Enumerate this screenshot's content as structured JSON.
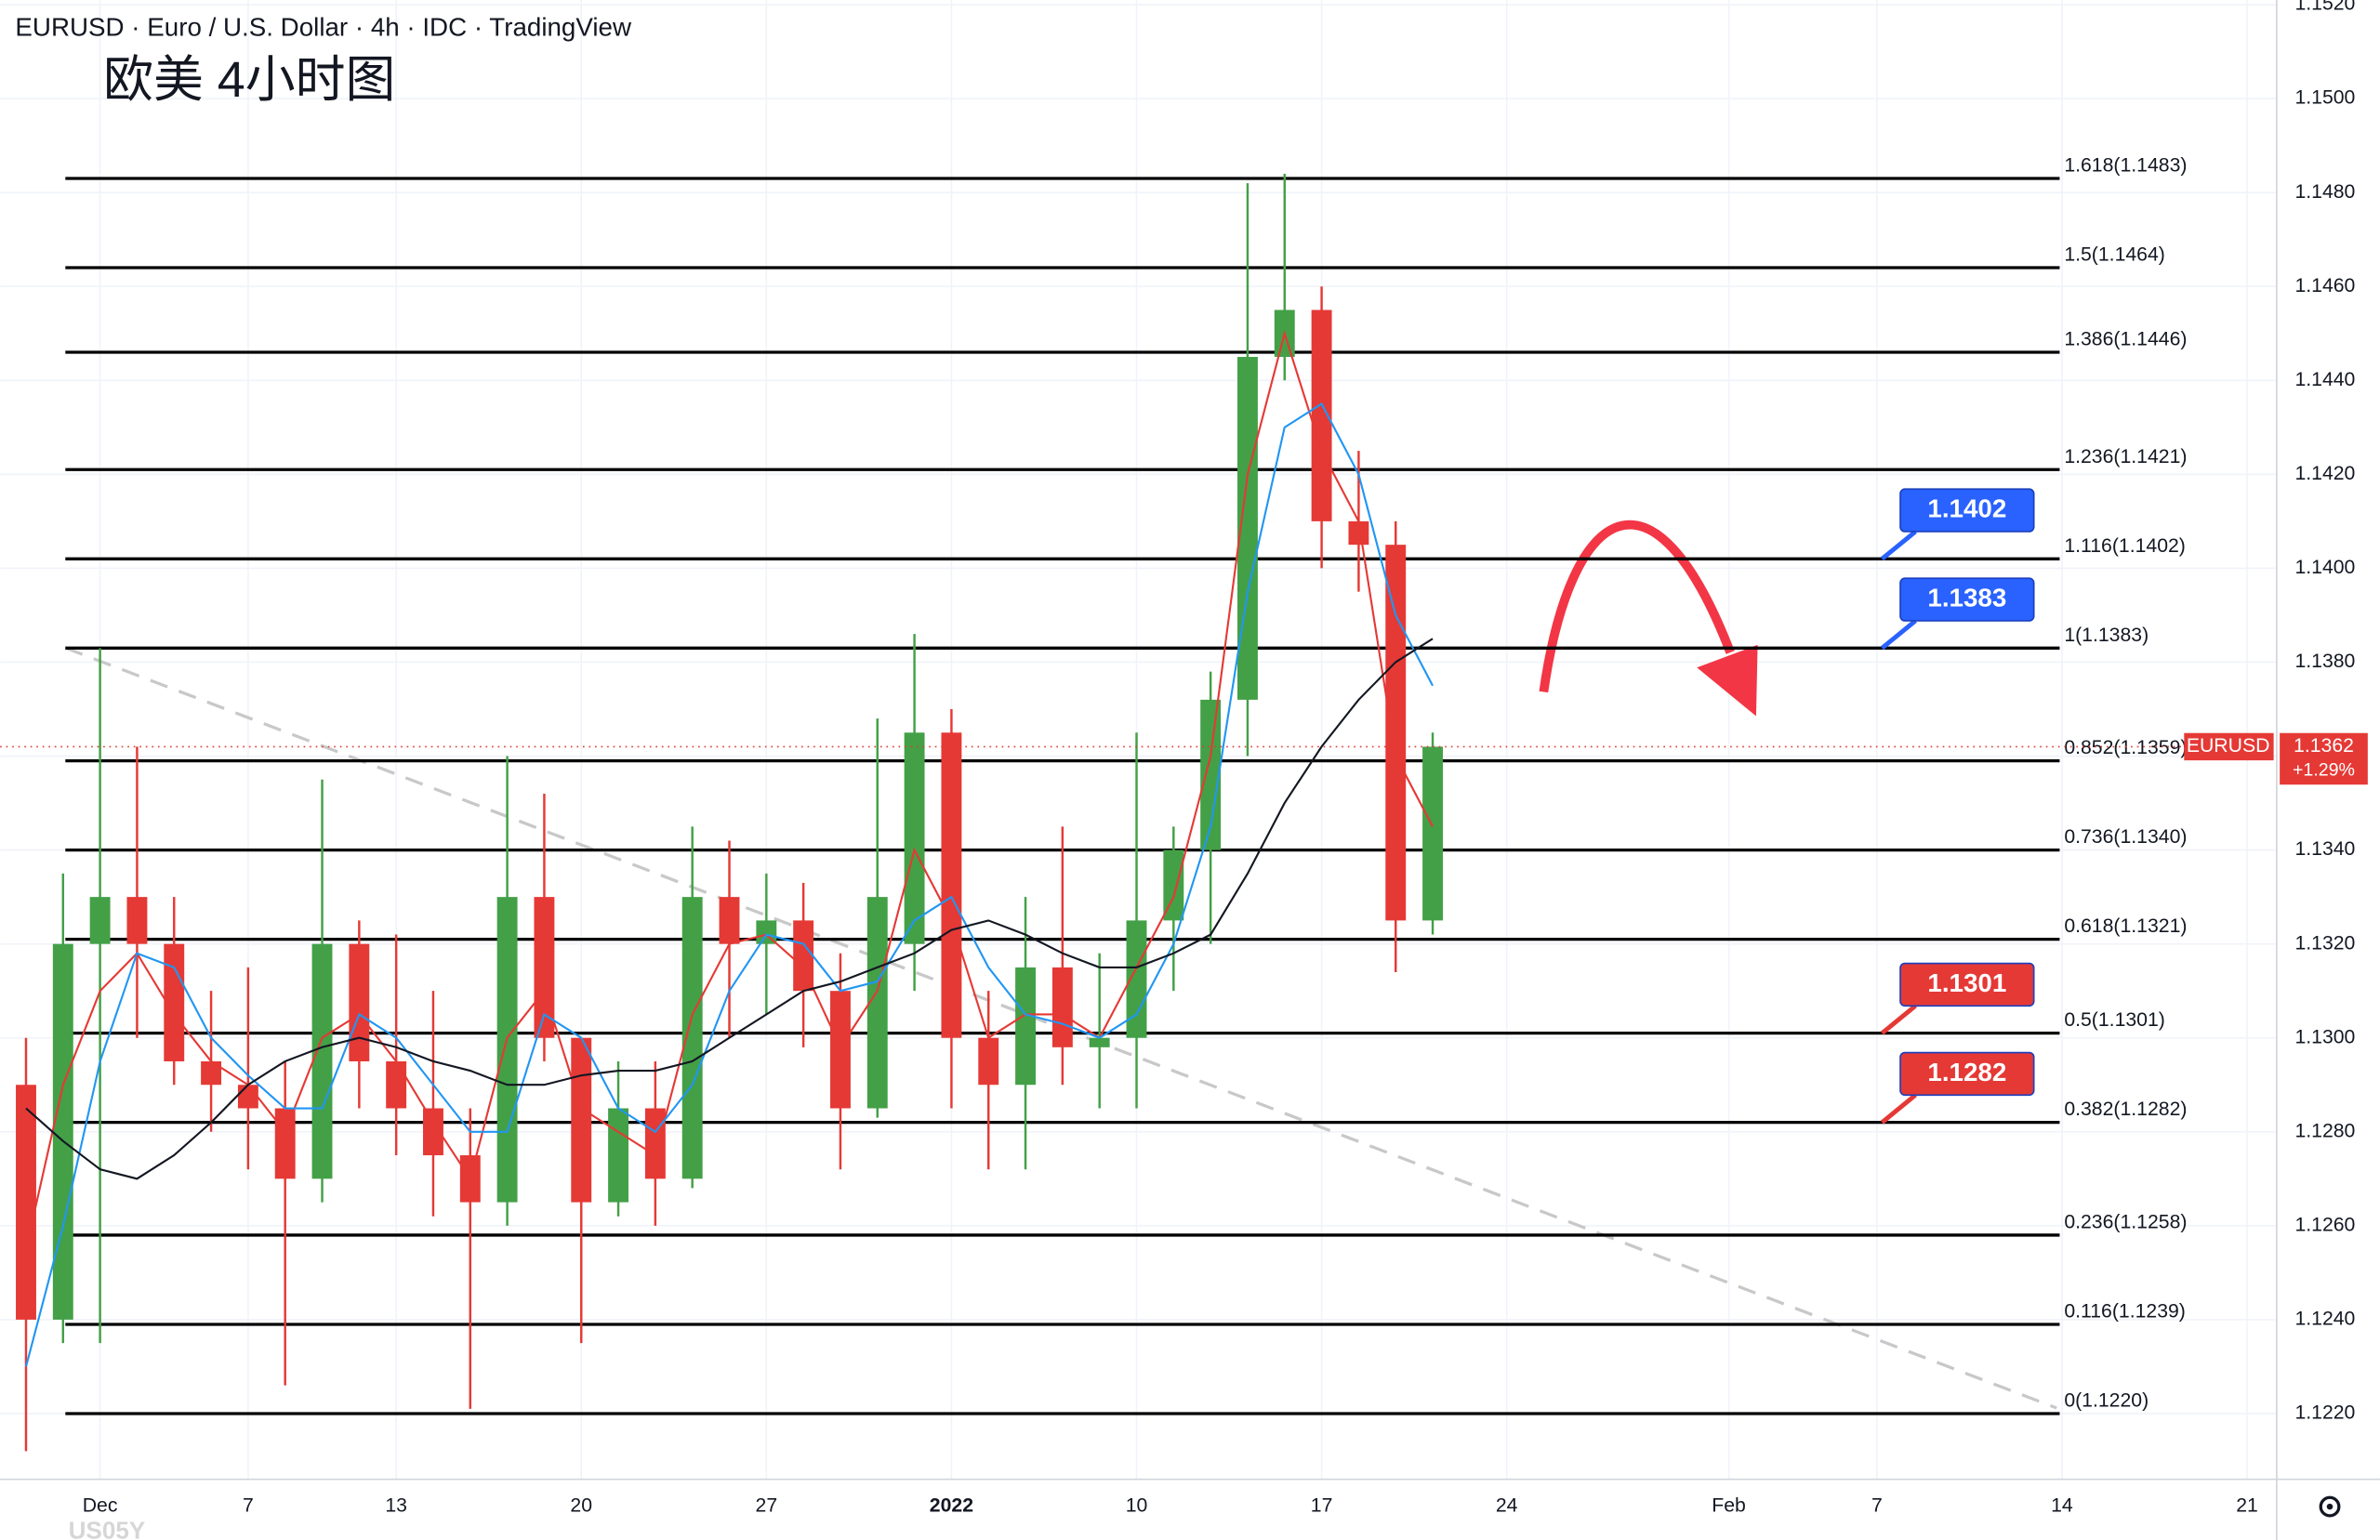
{
  "chart_data": {
    "type": "candlestick",
    "title": "EURUSD · Euro / U.S. Dollar · 4h · IDC · TradingView",
    "subtitle": "欧美 4小时图",
    "watermark": "US05Y",
    "xlim": [
      -2.7,
      58.8
    ],
    "xticks": [
      {
        "value": 0,
        "label": "Dec"
      },
      {
        "value": 4,
        "label": "7"
      },
      {
        "value": 8,
        "label": "13"
      },
      {
        "value": 13,
        "label": "20"
      },
      {
        "value": 18,
        "label": "27"
      },
      {
        "value": 23,
        "label": "2022"
      },
      {
        "value": 28,
        "label": "10"
      },
      {
        "value": 33,
        "label": "17"
      },
      {
        "value": 38,
        "label": "24"
      },
      {
        "value": 44,
        "label": "Feb"
      },
      {
        "value": 48,
        "label": "7"
      },
      {
        "value": 53,
        "label": "14"
      },
      {
        "value": 58,
        "label": "21"
      }
    ],
    "ylim": [
      1.1206,
      1.1521
    ],
    "yticks": [
      {
        "value": 1.122,
        "label": "1.1220"
      },
      {
        "value": 1.124,
        "label": "1.1240"
      },
      {
        "value": 1.126,
        "label": "1.1260"
      },
      {
        "value": 1.128,
        "label": "1.1280"
      },
      {
        "value": 1.13,
        "label": "1.1300"
      },
      {
        "value": 1.132,
        "label": "1.1320"
      },
      {
        "value": 1.134,
        "label": "1.1340"
      },
      {
        "value": 1.136,
        "label": "1.1360"
      },
      {
        "value": 1.138,
        "label": "1.1380"
      },
      {
        "value": 1.14,
        "label": "1.1400"
      },
      {
        "value": 1.142,
        "label": "1.1420"
      },
      {
        "value": 1.144,
        "label": "1.1440"
      },
      {
        "value": 1.146,
        "label": "1.1460"
      },
      {
        "value": 1.148,
        "label": "1.1480"
      },
      {
        "value": 1.15,
        "label": "1.1500"
      },
      {
        "value": 1.152,
        "label": "1.1520"
      }
    ],
    "grid": true,
    "up_color": "#43a047",
    "down_color": "#e53935",
    "x": [
      -2,
      -1,
      0,
      1,
      2,
      3,
      4,
      5,
      6,
      7,
      8,
      9,
      10,
      11,
      12,
      13,
      14,
      15,
      16,
      17,
      18,
      19,
      20,
      21,
      22,
      23,
      24,
      25,
      26,
      27,
      28,
      29,
      30,
      31,
      32,
      33,
      34,
      35,
      36
    ],
    "open": [
      1.129,
      1.124,
      1.132,
      1.133,
      1.132,
      1.1295,
      1.129,
      1.1285,
      1.127,
      1.132,
      1.1295,
      1.1285,
      1.1275,
      1.1265,
      1.133,
      1.13,
      1.1265,
      1.1285,
      1.127,
      1.133,
      1.132,
      1.1325,
      1.131,
      1.1285,
      1.132,
      1.1365,
      1.13,
      1.129,
      1.1315,
      1.1298,
      1.13,
      1.1325,
      1.134,
      1.1372,
      1.1445,
      1.1455,
      1.141,
      1.1405,
      1.1325
    ],
    "high": [
      1.13,
      1.1335,
      1.1383,
      1.1362,
      1.133,
      1.131,
      1.1315,
      1.1295,
      1.1355,
      1.1325,
      1.1322,
      1.131,
      1.1285,
      1.136,
      1.1352,
      1.13,
      1.1295,
      1.1295,
      1.1345,
      1.1342,
      1.1335,
      1.1333,
      1.1318,
      1.1368,
      1.1386,
      1.137,
      1.131,
      1.133,
      1.1345,
      1.1318,
      1.1365,
      1.1345,
      1.1378,
      1.1482,
      1.1484,
      1.146,
      1.1425,
      1.141,
      1.1365
    ],
    "low": [
      1.1212,
      1.1235,
      1.1235,
      1.13,
      1.129,
      1.128,
      1.1272,
      1.1226,
      1.1265,
      1.1285,
      1.1275,
      1.1262,
      1.1221,
      1.126,
      1.1295,
      1.1235,
      1.1262,
      1.126,
      1.1268,
      1.13,
      1.1305,
      1.1298,
      1.1272,
      1.1283,
      1.131,
      1.1285,
      1.1272,
      1.1272,
      1.129,
      1.1285,
      1.1285,
      1.131,
      1.132,
      1.136,
      1.144,
      1.14,
      1.1395,
      1.1314,
      1.1322
    ],
    "close": [
      1.124,
      1.132,
      1.133,
      1.132,
      1.1295,
      1.129,
      1.1285,
      1.127,
      1.132,
      1.1295,
      1.1285,
      1.1275,
      1.1265,
      1.133,
      1.13,
      1.1265,
      1.1285,
      1.127,
      1.133,
      1.132,
      1.1325,
      1.131,
      1.1285,
      1.133,
      1.1365,
      1.13,
      1.129,
      1.1315,
      1.1298,
      1.13,
      1.1325,
      1.134,
      1.1372,
      1.1445,
      1.1455,
      1.141,
      1.1405,
      1.1325,
      1.1362
    ],
    "lines": [
      {
        "color": "#e53935",
        "values": [
          1.1255,
          1.129,
          1.131,
          1.1318,
          1.1305,
          1.1295,
          1.129,
          1.128,
          1.13,
          1.1305,
          1.1295,
          1.1282,
          1.127,
          1.13,
          1.131,
          1.1285,
          1.128,
          1.1275,
          1.1305,
          1.132,
          1.1322,
          1.1315,
          1.1298,
          1.131,
          1.134,
          1.1325,
          1.13,
          1.1305,
          1.1305,
          1.13,
          1.1315,
          1.133,
          1.136,
          1.142,
          1.145,
          1.1425,
          1.141,
          1.136,
          1.1345
        ]
      },
      {
        "color": "#2196f3",
        "values": [
          1.123,
          1.126,
          1.1295,
          1.1318,
          1.1315,
          1.13,
          1.1292,
          1.1285,
          1.1285,
          1.1305,
          1.13,
          1.129,
          1.128,
          1.128,
          1.1305,
          1.13,
          1.1285,
          1.128,
          1.129,
          1.131,
          1.1322,
          1.132,
          1.131,
          1.1312,
          1.1325,
          1.133,
          1.1315,
          1.1305,
          1.1303,
          1.13,
          1.1305,
          1.132,
          1.1345,
          1.1395,
          1.143,
          1.1435,
          1.142,
          1.139,
          1.1375
        ]
      },
      {
        "color": "#131722",
        "values": [
          1.1285,
          1.1278,
          1.1272,
          1.127,
          1.1275,
          1.1282,
          1.129,
          1.1295,
          1.1298,
          1.13,
          1.1298,
          1.1295,
          1.1293,
          1.129,
          1.129,
          1.1292,
          1.1293,
          1.1293,
          1.1295,
          1.13,
          1.1305,
          1.131,
          1.1312,
          1.1315,
          1.1318,
          1.1323,
          1.1325,
          1.1322,
          1.1318,
          1.1315,
          1.1315,
          1.1318,
          1.1322,
          1.1335,
          1.135,
          1.1362,
          1.1372,
          1.138,
          1.1385
        ]
      }
    ],
    "levels": [
      {
        "label": "1.618(1.1483)",
        "value": 1.1483
      },
      {
        "label": "1.5(1.1464)",
        "value": 1.1464
      },
      {
        "label": "1.386(1.1446)",
        "value": 1.1446
      },
      {
        "label": "1.236(1.1421)",
        "value": 1.1421
      },
      {
        "label": "1.116(1.1402)",
        "value": 1.1402
      },
      {
        "label": "1(1.1383)",
        "value": 1.1383
      },
      {
        "label": "0.852(1.1359)",
        "value": 1.1359
      },
      {
        "label": "0.736(1.1340)",
        "value": 1.134
      },
      {
        "label": "0.618(1.1321)",
        "value": 1.1321
      },
      {
        "label": "0.5(1.1301)",
        "value": 1.1301
      },
      {
        "label": "0.382(1.1282)",
        "value": 1.1282
      },
      {
        "label": "0.236(1.1258)",
        "value": 1.1258
      },
      {
        "label": "0.116(1.1239)",
        "value": 1.1239
      },
      {
        "label": "0(1.1220)",
        "value": 1.122
      }
    ],
    "callouts": [
      {
        "value": 1.1402,
        "color": "#2962ff"
      },
      {
        "value": 1.1383,
        "color": "#2962ff"
      },
      {
        "value": 1.1301,
        "color": "#e53935"
      },
      {
        "value": 1.1282,
        "color": "#e53935"
      }
    ],
    "price_tag": {
      "symbol": "EURUSD",
      "value": 1.1362,
      "change": "+1.29%",
      "color": "#e53935"
    }
  }
}
